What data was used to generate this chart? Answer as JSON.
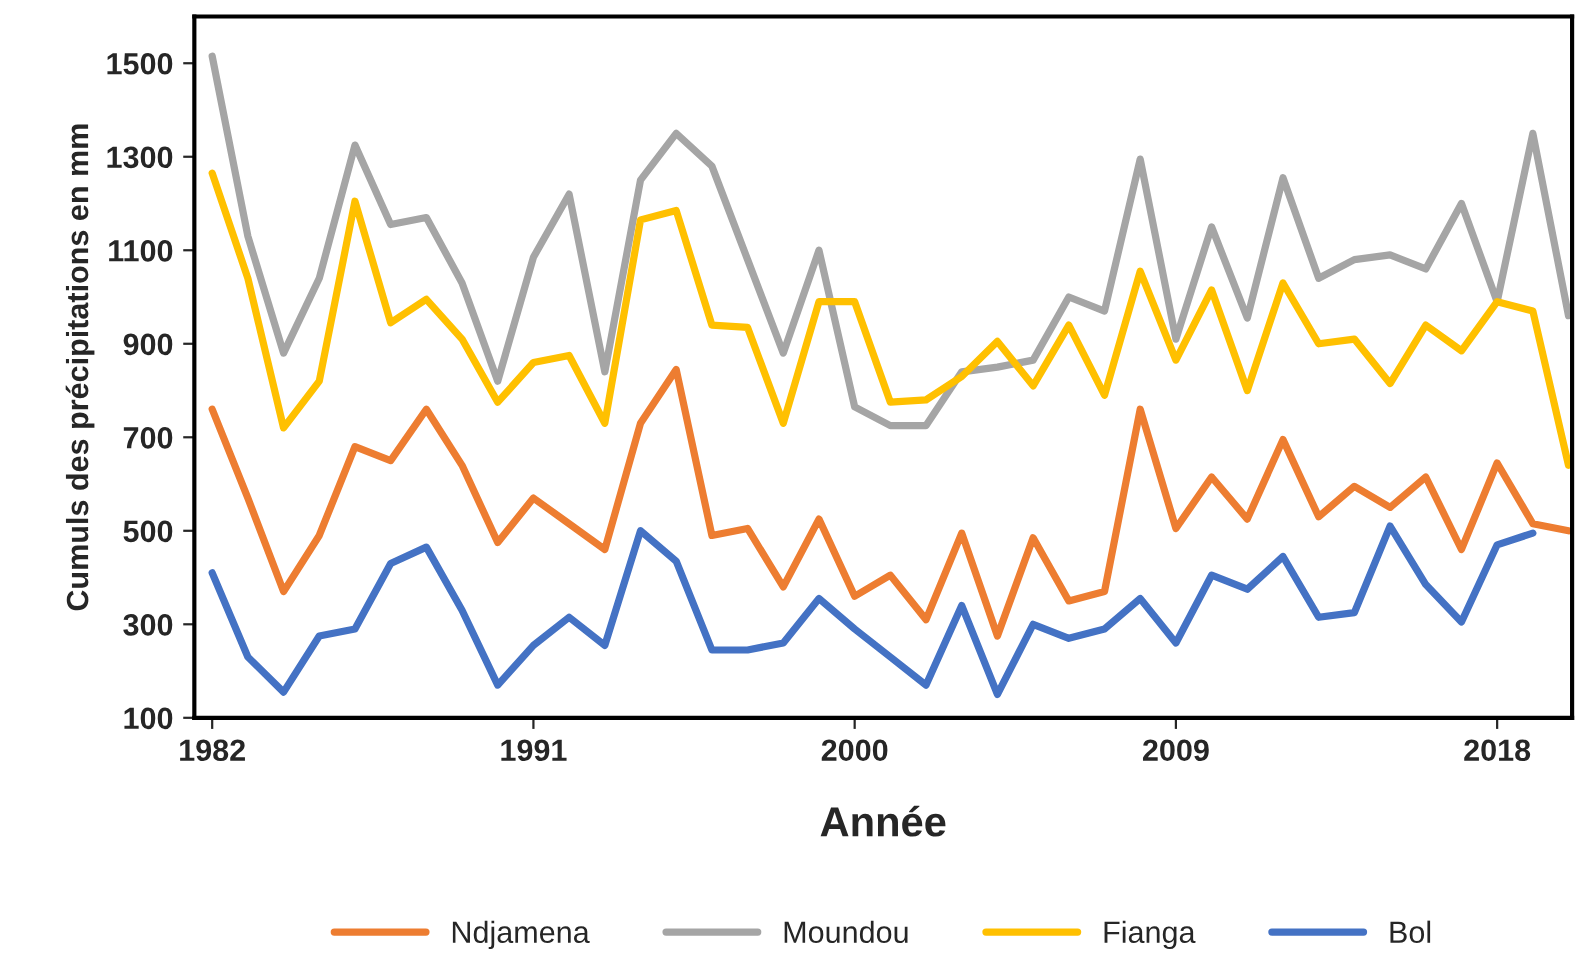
{
  "chart_data": {
    "type": "line",
    "xlabel": "Année",
    "ylabel": "Cumuls des précipitations en mm",
    "x": [
      1982,
      1983,
      1984,
      1985,
      1986,
      1987,
      1988,
      1989,
      1990,
      1991,
      1992,
      1993,
      1994,
      1995,
      1996,
      1997,
      1998,
      1999,
      2000,
      2001,
      2002,
      2003,
      2004,
      2005,
      2006,
      2007,
      2008,
      2009,
      2010,
      2011,
      2012,
      2013,
      2014,
      2015,
      2016,
      2017,
      2018,
      2019,
      2020
    ],
    "series": [
      {
        "name": "Ndjamena",
        "color": "#ed7d31",
        "values": [
          760,
          570,
          370,
          490,
          680,
          650,
          760,
          640,
          475,
          570,
          515,
          460,
          730,
          845,
          490,
          505,
          380,
          525,
          360,
          405,
          310,
          495,
          275,
          485,
          350,
          370,
          760,
          505,
          615,
          525,
          695,
          530,
          595,
          550,
          615,
          460,
          645,
          515,
          500
        ]
      },
      {
        "name": "Moundou",
        "color": "#a5a5a5",
        "values": [
          1515,
          1130,
          880,
          1040,
          1325,
          1155,
          1170,
          1030,
          820,
          1085,
          1220,
          840,
          1250,
          1350,
          1280,
          1080,
          880,
          1100,
          765,
          725,
          725,
          840,
          850,
          865,
          1000,
          970,
          1295,
          910,
          1150,
          955,
          1255,
          1040,
          1080,
          1090,
          1060,
          1200,
          990,
          1350,
          960
        ]
      },
      {
        "name": "Fianga",
        "color": "#ffc000",
        "values": [
          1265,
          1040,
          720,
          820,
          1205,
          945,
          995,
          910,
          775,
          860,
          875,
          730,
          1165,
          1185,
          940,
          935,
          730,
          990,
          990,
          775,
          780,
          830,
          905,
          810,
          940,
          790,
          1055,
          865,
          1015,
          800,
          1030,
          900,
          910,
          815,
          940,
          885,
          990,
          970,
          640
        ]
      },
      {
        "name": "Bol",
        "color": "#4472c4",
        "values": [
          410,
          230,
          155,
          275,
          290,
          430,
          465,
          330,
          170,
          255,
          315,
          255,
          500,
          435,
          245,
          245,
          260,
          355,
          290,
          230,
          170,
          340,
          150,
          300,
          270,
          290,
          355,
          260,
          405,
          375,
          445,
          315,
          325,
          510,
          385,
          305,
          470,
          495,
          null
        ]
      }
    ],
    "xlim": [
      1981.5,
      2020.1
    ],
    "xticks": [
      1982,
      1991,
      2000,
      2009,
      2018
    ],
    "ylim": [
      100,
      1600
    ],
    "yticks": [
      100,
      300,
      500,
      700,
      900,
      1100,
      1300,
      1500
    ],
    "grid": false,
    "legend": "bottom",
    "marker": "none",
    "line_style": "solid"
  }
}
